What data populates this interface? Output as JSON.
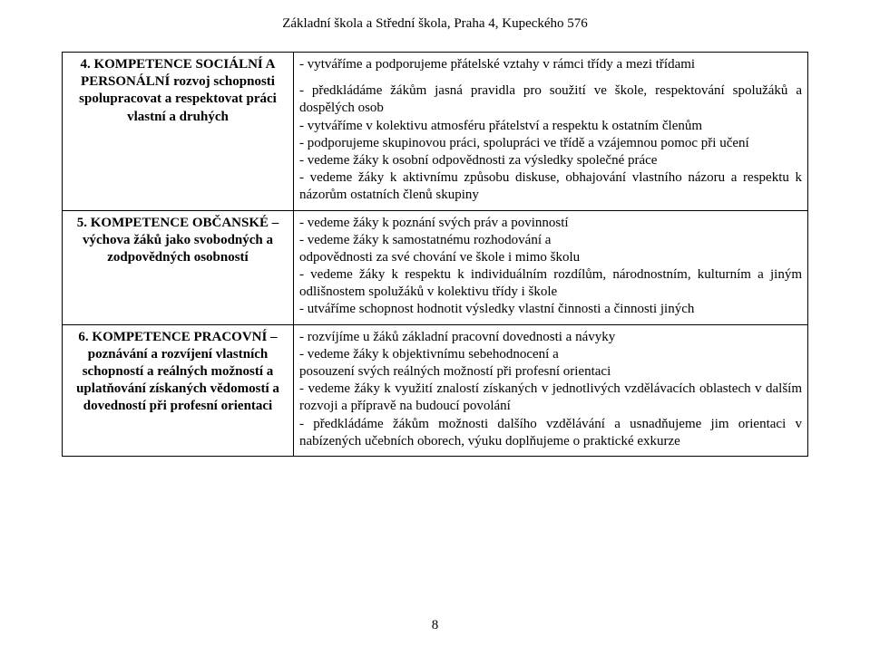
{
  "document": {
    "header": "Základní škola a Střední škola, Praha 4, Kupeckého 576",
    "page_number": "8",
    "font_family": "Times New Roman",
    "base_font_size_pt": 11,
    "border_color": "#000000",
    "background_color": "#ffffff",
    "text_color": "#000000"
  },
  "rows": [
    {
      "left_number": "4. ",
      "left_title": "KOMPETENCE SOCIÁLNÍ A PERSONÁLNÍ",
      "left_rest": " rozvoj schopnosti spolupracovat a respektovat práci vlastní a druhých",
      "right_top": "- vytváříme a podporujeme přátelské vztahy v rámci třídy a mezi třídami",
      "right_body": "- předkládáme žákům jasná pravidla pro soužití ve škole, respektování spolužáků a dospělých osob\n- vytváříme v kolektivu atmosféru přátelství a respektu k ostatním členům\n- podporujeme skupinovou práci, spolupráci ve třídě a vzájemnou pomoc při učení\n- vedeme žáky k osobní odpovědnosti za výsledky společné práce\n- vedeme žáky k aktivnímu způsobu diskuse, obhajování vlastního názoru a respektu k názorům ostatních členů skupiny"
    },
    {
      "left_number": "5. ",
      "left_title": "KOMPETENCE OBČANSKÉ",
      "left_rest": " – výchova žáků jako svobodných a zodpovědných osobností",
      "right_top": "",
      "right_body": "- vedeme žáky k poznání svých práv a povinností\n- vedeme žáky k samostatnému rozhodování a\nodpovědnosti za své chování ve škole i mimo školu\n- vedeme žáky k respektu k individuálním rozdílům, národnostním, kulturním a jiným odlišnostem spolužáků v kolektivu třídy i škole\n- utváříme schopnost hodnotit výsledky vlastní činnosti a činnosti jiných"
    },
    {
      "left_number": "6. ",
      "left_title": "KOMPETENCE PRACOVNÍ",
      "left_rest": " – poznávání a rozvíjení vlastních schopností a reálných možností a uplatňování získaných vědomostí a dovedností při profesní orientaci",
      "right_top": "",
      "right_body": " - rozvíjíme u žáků základní pracovní dovednosti a návyky\n- vedeme žáky k objektivnímu sebehodnocení a\nposouzení svých reálných možností při profesní orientaci\n- vedeme žáky k využití znalostí získaných v jednotlivých vzdělávacích oblastech v dalším  rozvoji a přípravě na budoucí povolání\n- předkládáme žákům možnosti dalšího vzdělávání a usnadňujeme jim orientaci v nabízených učebních oborech, výuku doplňujeme o praktické exkurze"
    }
  ]
}
